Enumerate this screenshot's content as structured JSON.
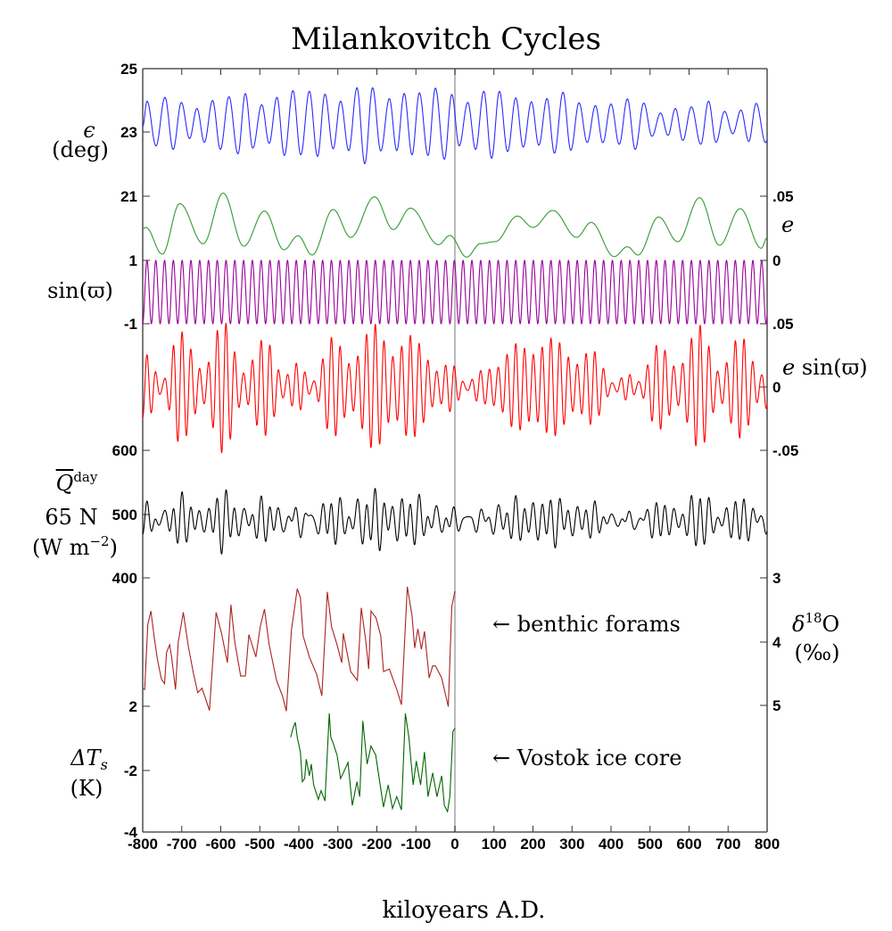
{
  "chart_data": {
    "type": "line",
    "title": "Milankovitch Cycles",
    "xlabel": "kiloyears A.D.",
    "xlim": [
      -800,
      800
    ],
    "x_ticks": [
      "-800",
      "-700",
      "-600",
      "-500",
      "-400",
      "-300",
      "-200",
      "-100",
      "0",
      "100",
      "200",
      "300",
      "400",
      "500",
      "600",
      "700",
      "800"
    ],
    "grid": false,
    "reference_line_x": 0,
    "reference_line_color": "#bbbbbb",
    "annotations": {
      "benthic": "← benthic forams",
      "vostok": "← Vostok ice core"
    },
    "axis_labels": {
      "obliquity": {
        "symbol": "ϵ",
        "unit": "(deg)"
      },
      "precession": {
        "text": "sin(ϖ)"
      },
      "insolation": {
        "symbol": "Q",
        "sup": "day",
        "line2": "65 N",
        "unit_a": "(W m",
        "unit_sup": "−2",
        "unit_b": ")"
      },
      "temperature": {
        "symbol": "ΔT",
        "sub": "s",
        "unit": "(K)"
      },
      "eccentricity": {
        "symbol": "e"
      },
      "e_sin": {
        "symbol": "e",
        "text": " sin(ϖ)"
      },
      "d18o": {
        "symbol": "δ",
        "sup": "18",
        "after": "O",
        "unit": "(‰)"
      }
    },
    "left_ticks": {
      "obliquity": [
        "25",
        "23",
        "21"
      ],
      "precession": [
        "1",
        "-1"
      ],
      "insolation": [
        "600",
        "500",
        "400"
      ],
      "temperature": [
        "2",
        "-2",
        "-4"
      ]
    },
    "right_ticks": {
      "eccentricity": [
        ".05",
        "0"
      ],
      "e_sin": [
        ".05",
        "0",
        "-.05"
      ],
      "d18o": [
        "3",
        "4",
        "5"
      ]
    },
    "series": [
      {
        "key": "obliquity",
        "color": "#2a2aff",
        "ylim": [
          21,
          25
        ],
        "points": [
          [
            -800,
            23.19
          ],
          [
            -789,
            23.98
          ],
          [
            -766,
            22.58
          ],
          [
            -743,
            24.1
          ],
          [
            -722,
            22.47
          ],
          [
            -701,
            23.94
          ],
          [
            -680,
            22.81
          ],
          [
            -661,
            23.75
          ],
          [
            -642,
            22.69
          ],
          [
            -621,
            24.0
          ],
          [
            -601,
            22.47
          ],
          [
            -579,
            24.12
          ],
          [
            -556,
            22.33
          ],
          [
            -537,
            24.22
          ],
          [
            -518,
            22.51
          ],
          [
            -495,
            23.87
          ],
          [
            -476,
            22.66
          ],
          [
            -456,
            24.1
          ],
          [
            -437,
            22.28
          ],
          [
            -415,
            24.31
          ],
          [
            -395,
            22.3
          ],
          [
            -373,
            24.29
          ],
          [
            -352,
            22.25
          ],
          [
            -333,
            24.2
          ],
          [
            -312,
            22.49
          ],
          [
            -293,
            23.98
          ],
          [
            -272,
            22.43
          ],
          [
            -251,
            24.4
          ],
          [
            -231,
            22.02
          ],
          [
            -211,
            24.4
          ],
          [
            -190,
            22.42
          ],
          [
            -168,
            24.06
          ],
          [
            -149,
            22.43
          ],
          [
            -130,
            24.22
          ],
          [
            -110,
            22.3
          ],
          [
            -91,
            24.24
          ],
          [
            -69,
            22.28
          ],
          [
            -50,
            24.39
          ],
          [
            -27,
            22.16
          ],
          [
            -8,
            24.19
          ],
          [
            11,
            22.58
          ],
          [
            33,
            23.94
          ],
          [
            53,
            22.47
          ],
          [
            74,
            24.29
          ],
          [
            94,
            22.19
          ],
          [
            114,
            24.29
          ],
          [
            135,
            22.4
          ],
          [
            156,
            24.08
          ],
          [
            175,
            22.54
          ],
          [
            196,
            23.96
          ],
          [
            215,
            22.6
          ],
          [
            236,
            24.06
          ],
          [
            255,
            22.35
          ],
          [
            277,
            24.26
          ],
          [
            297,
            22.44
          ],
          [
            318,
            23.93
          ],
          [
            339,
            22.69
          ],
          [
            360,
            23.84
          ],
          [
            379,
            22.68
          ],
          [
            400,
            23.89
          ],
          [
            421,
            22.63
          ],
          [
            442,
            24.05
          ],
          [
            462,
            22.47
          ],
          [
            484,
            23.92
          ],
          [
            505,
            22.88
          ],
          [
            527,
            23.61
          ],
          [
            546,
            22.91
          ],
          [
            565,
            23.75
          ],
          [
            584,
            22.75
          ],
          [
            606,
            23.8
          ],
          [
            630,
            22.63
          ],
          [
            650,
            23.98
          ],
          [
            669,
            22.69
          ],
          [
            691,
            23.66
          ],
          [
            712,
            22.96
          ],
          [
            733,
            23.7
          ],
          [
            753,
            22.72
          ],
          [
            772,
            23.91
          ],
          [
            796,
            22.68
          ],
          [
            800,
            22.75
          ]
        ]
      },
      {
        "key": "eccentricity",
        "color": "#339933",
        "ylim": [
          0,
          0.05
        ],
        "points": [
          [
            -800,
            0.0245
          ],
          [
            -792,
            0.0257
          ],
          [
            -750,
            0.0049
          ],
          [
            -705,
            0.0442
          ],
          [
            -645,
            0.013
          ],
          [
            -594,
            0.0523
          ],
          [
            -541,
            0.0111
          ],
          [
            -488,
            0.0384
          ],
          [
            -438,
            0.0083
          ],
          [
            -402,
            0.0192
          ],
          [
            -366,
            0.0042
          ],
          [
            -312,
            0.0396
          ],
          [
            -267,
            0.018
          ],
          [
            -206,
            0.0495
          ],
          [
            -158,
            0.0241
          ],
          [
            -114,
            0.0407
          ],
          [
            -42,
            0.0123
          ],
          [
            -13,
            0.0194
          ],
          [
            30,
            0.0026
          ],
          [
            65,
            0.013
          ],
          [
            103,
            0.0146
          ],
          [
            160,
            0.0345
          ],
          [
            200,
            0.0257
          ],
          [
            251,
            0.0389
          ],
          [
            312,
            0.018
          ],
          [
            349,
            0.0296
          ],
          [
            408,
            0.003
          ],
          [
            442,
            0.0106
          ],
          [
            469,
            0.0042
          ],
          [
            522,
            0.0338
          ],
          [
            571,
            0.0146
          ],
          [
            627,
            0.0488
          ],
          [
            678,
            0.0118
          ],
          [
            731,
            0.0403
          ],
          [
            785,
            0.0095
          ],
          [
            800,
            0.0176
          ]
        ]
      },
      {
        "key": "precession",
        "color": "#990099",
        "ylim": [
          -1,
          1
        ],
        "period_kyr": 22.5,
        "peak_kyr": -789
      },
      {
        "key": "e_sin",
        "color": "#ff0000",
        "ylim": [
          -0.05,
          0.05
        ]
      },
      {
        "key": "insolation",
        "color": "#000000",
        "ylim": [
          400,
          600
        ]
      },
      {
        "key": "benthic",
        "name": "benthic forams",
        "color": "#aa2222",
        "ylim": [
          5,
          3
        ],
        "points": [
          [
            -800,
            4.73
          ],
          [
            -795,
            4.75
          ],
          [
            -787,
            3.73
          ],
          [
            -779,
            3.52
          ],
          [
            -770,
            3.96
          ],
          [
            -762,
            4.29
          ],
          [
            -752,
            4.59
          ],
          [
            -744,
            4.66
          ],
          [
            -739,
            4.17
          ],
          [
            -731,
            4.05
          ],
          [
            -726,
            4.24
          ],
          [
            -716,
            4.75
          ],
          [
            -709,
            4.01
          ],
          [
            -696,
            3.54
          ],
          [
            -683,
            4.08
          ],
          [
            -670,
            4.5
          ],
          [
            -659,
            4.8
          ],
          [
            -648,
            4.73
          ],
          [
            -629,
            5.08
          ],
          [
            -612,
            3.54
          ],
          [
            -598,
            3.87
          ],
          [
            -583,
            4.33
          ],
          [
            -574,
            3.42
          ],
          [
            -564,
            4.01
          ],
          [
            -549,
            4.54
          ],
          [
            -537,
            4.54
          ],
          [
            -528,
            3.89
          ],
          [
            -510,
            4.24
          ],
          [
            -499,
            3.77
          ],
          [
            -488,
            3.49
          ],
          [
            -476,
            4.05
          ],
          [
            -457,
            4.61
          ],
          [
            -442,
            4.85
          ],
          [
            -432,
            5.09
          ],
          [
            -419,
            3.82
          ],
          [
            -404,
            3.17
          ],
          [
            -396,
            3.31
          ],
          [
            -389,
            3.91
          ],
          [
            -373,
            4.24
          ],
          [
            -354,
            4.52
          ],
          [
            -341,
            4.85
          ],
          [
            -327,
            3.22
          ],
          [
            -316,
            3.77
          ],
          [
            -302,
            4.05
          ],
          [
            -290,
            4.33
          ],
          [
            -286,
            3.87
          ],
          [
            -267,
            4.47
          ],
          [
            -250,
            4.61
          ],
          [
            -240,
            3.47
          ],
          [
            -229,
            3.96
          ],
          [
            -221,
            4.43
          ],
          [
            -215,
            3.52
          ],
          [
            -202,
            3.63
          ],
          [
            -190,
            3.91
          ],
          [
            -183,
            4.47
          ],
          [
            -168,
            4.43
          ],
          [
            -149,
            4.75
          ],
          [
            -137,
            4.99
          ],
          [
            -122,
            3.14
          ],
          [
            -110,
            3.59
          ],
          [
            -103,
            4.1
          ],
          [
            -95,
            3.8
          ],
          [
            -86,
            4.12
          ],
          [
            -78,
            3.84
          ],
          [
            -66,
            4.57
          ],
          [
            -57,
            4.38
          ],
          [
            -50,
            4.38
          ],
          [
            -34,
            4.57
          ],
          [
            -17,
            5.02
          ],
          [
            -8,
            3.45
          ],
          [
            0,
            3.21
          ]
        ]
      },
      {
        "key": "vostok",
        "name": "Vostok ice core",
        "color": "#006600",
        "ylim": [
          -4,
          2
        ],
        "points": [
          [
            -421,
            0.07
          ],
          [
            -415,
            0.63
          ],
          [
            -409,
            1.0
          ],
          [
            -404,
            0.07
          ],
          [
            -396,
            -0.85
          ],
          [
            -391,
            -2.7
          ],
          [
            -385,
            -2.5
          ],
          [
            -381,
            -1.3
          ],
          [
            -373,
            -2.33
          ],
          [
            -368,
            -1.6
          ],
          [
            -362,
            -2.9
          ],
          [
            -350,
            -3.8
          ],
          [
            -343,
            -3.26
          ],
          [
            -333,
            -3.9
          ],
          [
            -322,
            1.56
          ],
          [
            -318,
            0.07
          ],
          [
            -312,
            -0.3
          ],
          [
            -302,
            -1.04
          ],
          [
            -293,
            -2.5
          ],
          [
            -286,
            -2.15
          ],
          [
            -274,
            -1.5
          ],
          [
            -263,
            -4.18
          ],
          [
            -251,
            -2.7
          ],
          [
            -244,
            -3.63
          ],
          [
            -236,
            1.09
          ],
          [
            -225,
            -1.6
          ],
          [
            -215,
            -0.48
          ],
          [
            -203,
            -1.04
          ],
          [
            -194,
            -2.5
          ],
          [
            -183,
            -4.28
          ],
          [
            -171,
            -2.9
          ],
          [
            -160,
            -4.37
          ],
          [
            -149,
            -3.63
          ],
          [
            -137,
            -4.46
          ],
          [
            -127,
            1.56
          ],
          [
            -118,
            0.07
          ],
          [
            -107,
            -2.9
          ],
          [
            -99,
            -1.41
          ],
          [
            -88,
            -2.9
          ],
          [
            -78,
            -0.85
          ],
          [
            -69,
            -3.63
          ],
          [
            -57,
            -2.15
          ],
          [
            -46,
            -3.63
          ],
          [
            -34,
            -2.33
          ],
          [
            -27,
            -4.18
          ],
          [
            -19,
            -4.56
          ],
          [
            -13,
            -3.63
          ],
          [
            -5,
            0.44
          ],
          [
            0,
            0.63
          ]
        ]
      }
    ]
  }
}
